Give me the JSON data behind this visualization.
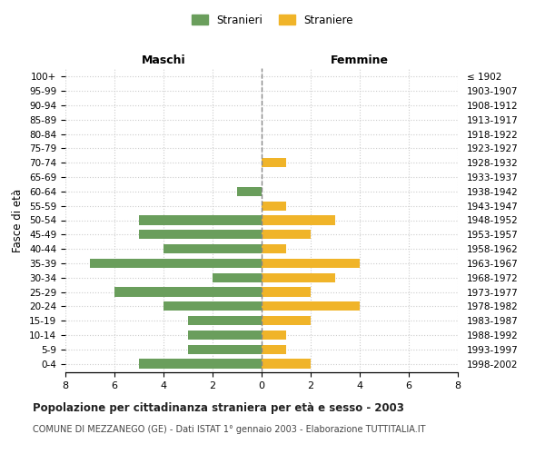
{
  "age_groups": [
    "0-4",
    "5-9",
    "10-14",
    "15-19",
    "20-24",
    "25-29",
    "30-34",
    "35-39",
    "40-44",
    "45-49",
    "50-54",
    "55-59",
    "60-64",
    "65-69",
    "70-74",
    "75-79",
    "80-84",
    "85-89",
    "90-94",
    "95-99",
    "100+"
  ],
  "birth_years": [
    "1998-2002",
    "1993-1997",
    "1988-1992",
    "1983-1987",
    "1978-1982",
    "1973-1977",
    "1968-1972",
    "1963-1967",
    "1958-1962",
    "1953-1957",
    "1948-1952",
    "1943-1947",
    "1938-1942",
    "1933-1937",
    "1928-1932",
    "1923-1927",
    "1918-1922",
    "1913-1917",
    "1908-1912",
    "1903-1907",
    "≤ 1902"
  ],
  "males": [
    5,
    3,
    3,
    3,
    4,
    6,
    2,
    7,
    4,
    5,
    5,
    0,
    1,
    0,
    0,
    0,
    0,
    0,
    0,
    0,
    0
  ],
  "females": [
    2,
    1,
    1,
    2,
    4,
    2,
    3,
    4,
    1,
    2,
    3,
    1,
    0,
    0,
    1,
    0,
    0,
    0,
    0,
    0,
    0
  ],
  "male_color": "#6a9e5c",
  "female_color": "#f0b429",
  "title": "Popolazione per cittadinanza straniera per età e sesso - 2003",
  "subtitle": "COMUNE DI MEZZANEGO (GE) - Dati ISTAT 1° gennaio 2003 - Elaborazione TUTTITALIA.IT",
  "label_maschi": "Maschi",
  "label_femmine": "Femmine",
  "ylabel_left": "Fasce di età",
  "legend_male": "Stranieri",
  "legend_female": "Straniere",
  "xlim": 8,
  "bg_color": "#ffffff",
  "grid_color": "#cccccc",
  "center_line_color": "#888888"
}
